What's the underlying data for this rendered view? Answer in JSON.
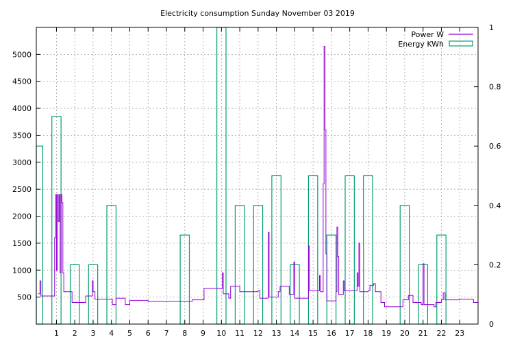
{
  "chart_data": {
    "type": "line",
    "title": "Electricity consumption Sunday November 03 2019",
    "xlabel": "",
    "ylabel": "",
    "xlim": [
      -0.1,
      24
    ],
    "ylim": [
      0,
      5500
    ],
    "y2lim": [
      0,
      1
    ],
    "grid": true,
    "legend_position": "top-right",
    "x_ticks": [
      "1",
      "2",
      "3",
      "4",
      "5",
      "6",
      "7",
      "8",
      "9",
      "10",
      "11",
      "12",
      "13",
      "14",
      "15",
      "16",
      "17",
      "18",
      "19",
      "20",
      "21",
      "22",
      "23"
    ],
    "y_ticks": [
      "500",
      "1000",
      "1500",
      "2000",
      "2500",
      "3000",
      "3500",
      "4000",
      "4500",
      "5000"
    ],
    "y2_ticks": [
      "0",
      "0.2",
      "0.4",
      "0.6",
      "0.8",
      "1"
    ],
    "colors": {
      "power": "#9400d3",
      "energy": "#009e73"
    },
    "series": [
      {
        "name": "Power W",
        "axis": "y1",
        "style": "steps",
        "points": [
          [
            0,
            560
          ],
          [
            0.1,
            800
          ],
          [
            0.15,
            520
          ],
          [
            0.5,
            520
          ],
          [
            0.8,
            520
          ],
          [
            0.9,
            1600
          ],
          [
            0.95,
            2400
          ],
          [
            1.0,
            1000
          ],
          [
            1.05,
            2400
          ],
          [
            1.1,
            1900
          ],
          [
            1.15,
            2400
          ],
          [
            1.2,
            950
          ],
          [
            1.25,
            2400
          ],
          [
            1.3,
            2250
          ],
          [
            1.35,
            950
          ],
          [
            1.4,
            600
          ],
          [
            1.8,
            600
          ],
          [
            1.85,
            400
          ],
          [
            2.5,
            400
          ],
          [
            2.6,
            520
          ],
          [
            2.9,
            520
          ],
          [
            2.95,
            800
          ],
          [
            3.0,
            600
          ],
          [
            3.1,
            460
          ],
          [
            3.3,
            460
          ],
          [
            4.0,
            460
          ],
          [
            4.05,
            360
          ],
          [
            4.2,
            360
          ],
          [
            4.25,
            480
          ],
          [
            4.7,
            480
          ],
          [
            4.75,
            360
          ],
          [
            4.95,
            360
          ],
          [
            5.0,
            440
          ],
          [
            5.5,
            440
          ],
          [
            6.0,
            420
          ],
          [
            7.0,
            420
          ],
          [
            8.0,
            420
          ],
          [
            8.4,
            450
          ],
          [
            9.0,
            450
          ],
          [
            9.05,
            660
          ],
          [
            10.0,
            660
          ],
          [
            10.05,
            950
          ],
          [
            10.1,
            560
          ],
          [
            10.3,
            560
          ],
          [
            10.4,
            480
          ],
          [
            10.5,
            700
          ],
          [
            11.0,
            600
          ],
          [
            12.0,
            620
          ],
          [
            12.1,
            480
          ],
          [
            12.5,
            480
          ],
          [
            12.55,
            1700
          ],
          [
            12.6,
            500
          ],
          [
            13.0,
            500
          ],
          [
            13.1,
            600
          ],
          [
            13.2,
            700
          ],
          [
            13.6,
            700
          ],
          [
            13.7,
            550
          ],
          [
            13.9,
            550
          ],
          [
            13.95,
            1150
          ],
          [
            14.0,
            480
          ],
          [
            14.7,
            480
          ],
          [
            14.75,
            1450
          ],
          [
            14.8,
            620
          ],
          [
            15.3,
            620
          ],
          [
            15.35,
            900
          ],
          [
            15.4,
            600
          ],
          [
            15.5,
            600
          ],
          [
            15.55,
            2600
          ],
          [
            15.6,
            5150
          ],
          [
            15.65,
            3600
          ],
          [
            15.7,
            1300
          ],
          [
            15.75,
            430
          ],
          [
            16.2,
            430
          ],
          [
            16.25,
            600
          ],
          [
            16.3,
            1800
          ],
          [
            16.35,
            1250
          ],
          [
            16.4,
            550
          ],
          [
            16.6,
            550
          ],
          [
            16.65,
            800
          ],
          [
            16.7,
            620
          ],
          [
            17.0,
            620
          ],
          [
            17.3,
            620
          ],
          [
            17.4,
            950
          ],
          [
            17.45,
            700
          ],
          [
            17.5,
            1500
          ],
          [
            17.55,
            600
          ],
          [
            17.9,
            600
          ],
          [
            18.0,
            620
          ],
          [
            18.1,
            720
          ],
          [
            18.3,
            750
          ],
          [
            18.4,
            600
          ],
          [
            18.6,
            600
          ],
          [
            18.7,
            400
          ],
          [
            18.9,
            320
          ],
          [
            19.3,
            320
          ],
          [
            19.8,
            320
          ],
          [
            19.9,
            450
          ],
          [
            20.1,
            450
          ],
          [
            20.2,
            530
          ],
          [
            20.4,
            530
          ],
          [
            20.45,
            400
          ],
          [
            20.8,
            400
          ],
          [
            20.9,
            360
          ],
          [
            21.0,
            1120
          ],
          [
            21.05,
            360
          ],
          [
            21.5,
            360
          ],
          [
            21.6,
            320
          ],
          [
            21.7,
            400
          ],
          [
            22.0,
            450
          ],
          [
            22.1,
            580
          ],
          [
            22.2,
            450
          ],
          [
            22.5,
            450
          ],
          [
            23.0,
            460
          ],
          [
            23.5,
            460
          ],
          [
            23.7,
            460
          ],
          [
            23.75,
            400
          ],
          [
            24.0,
            400
          ]
        ]
      },
      {
        "name": "Energy KWh",
        "axis": "y2",
        "style": "boxes",
        "width": 0.5,
        "points": [
          [
            0,
            0.6
          ],
          [
            1,
            0.7
          ],
          [
            2,
            0.2
          ],
          [
            3,
            0.2
          ],
          [
            4,
            0.4
          ],
          [
            8,
            0.3
          ],
          [
            10,
            1.0
          ],
          [
            11,
            0.4
          ],
          [
            12,
            0.4
          ],
          [
            13,
            0.5
          ],
          [
            14,
            0.2
          ],
          [
            15,
            0.5
          ],
          [
            16,
            0.3
          ],
          [
            17,
            0.5
          ],
          [
            18,
            0.5
          ],
          [
            20,
            0.4
          ],
          [
            21,
            0.2
          ],
          [
            22,
            0.3
          ]
        ]
      }
    ]
  }
}
